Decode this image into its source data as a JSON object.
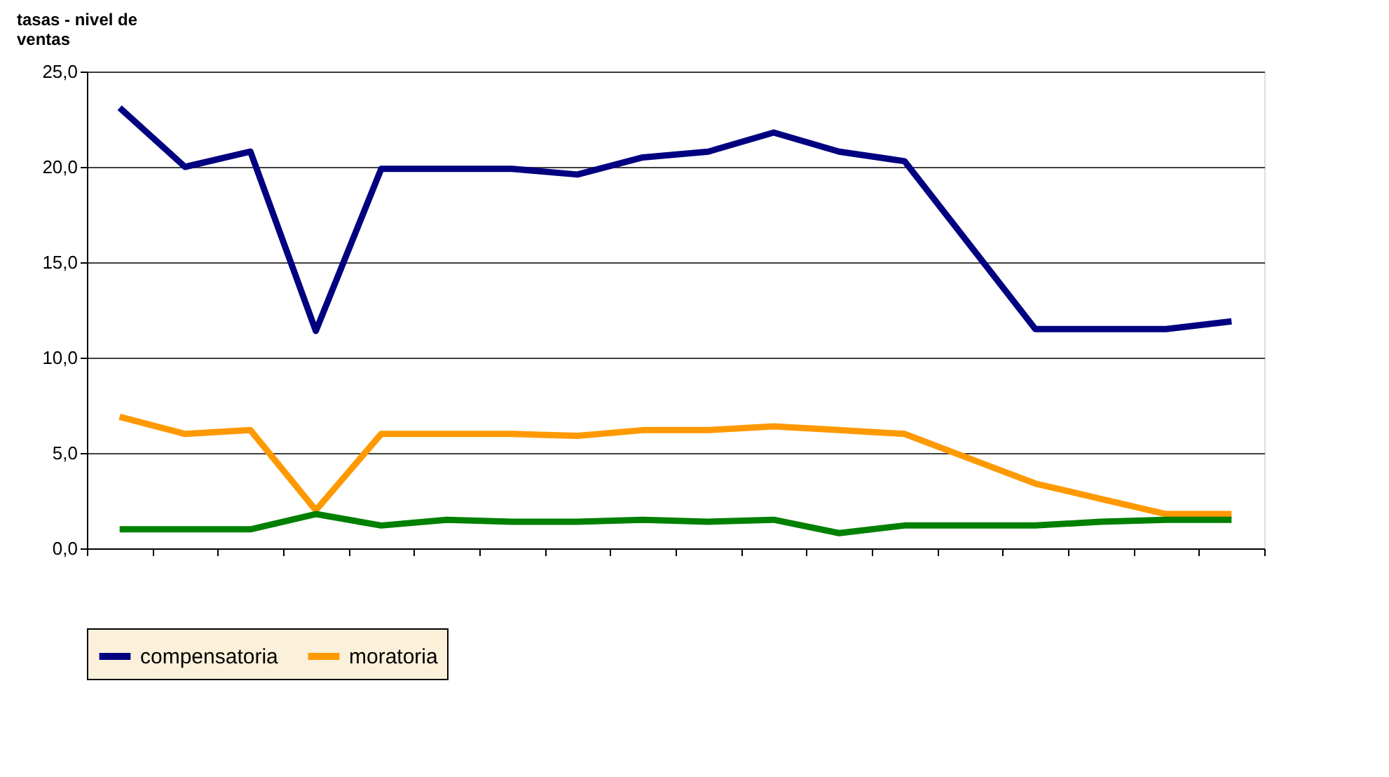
{
  "chart_data": {
    "type": "line",
    "title": "tasas - nivel de\nventas",
    "categories": [
      null,
      null,
      null,
      null,
      null,
      null,
      null,
      null,
      null,
      null,
      null,
      null,
      null,
      null,
      null,
      null,
      null,
      null
    ],
    "ylim": [
      0,
      25
    ],
    "yticks": [
      {
        "value": 0,
        "label": "0,0"
      },
      {
        "value": 5,
        "label": "5,0"
      },
      {
        "value": 10,
        "label": "10,0"
      },
      {
        "value": 15,
        "label": "15,0"
      },
      {
        "value": 20,
        "label": "20,0"
      },
      {
        "value": 25,
        "label": "25,0"
      }
    ],
    "grid": "y",
    "legend": "bottom",
    "line_style": "solid",
    "series": [
      {
        "name": "compensatoria",
        "color": "#000080",
        "values": [
          23.1,
          20.0,
          20.8,
          11.4,
          19.9,
          19.9,
          19.9,
          19.6,
          20.5,
          20.8,
          21.8,
          20.8,
          20.3,
          15.9,
          11.5,
          11.5,
          11.5,
          11.9
        ]
      },
      {
        "name": "moratoria",
        "color": "#ff9900",
        "values": [
          6.9,
          6.0,
          6.2,
          2.0,
          6.0,
          6.0,
          6.0,
          5.9,
          6.2,
          6.2,
          6.4,
          6.2,
          6.0,
          4.7,
          3.4,
          2.6,
          1.8,
          1.8
        ]
      },
      {
        "color": "#008000",
        "values": [
          1.0,
          1.0,
          1.0,
          1.8,
          1.2,
          1.5,
          1.4,
          1.4,
          1.5,
          1.4,
          1.5,
          0.8,
          1.2,
          1.2,
          1.2,
          1.4,
          1.5,
          1.5
        ]
      }
    ]
  }
}
